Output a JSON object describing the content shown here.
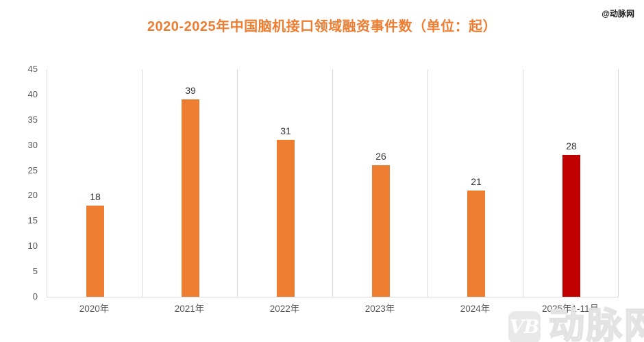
{
  "title": "2020-2025年中国脑机接口领域融资事件数（单位：起）",
  "watermarks": {
    "top_right": "@动脉网",
    "bottom_logo": "VB",
    "bottom_text": "动脉网"
  },
  "colors": {
    "title": "#ED7D31",
    "bar": "#ED7D31",
    "bar_highlight": "#C00000",
    "axis_line": "#D9D9D9",
    "gridline": "#D9D9D9",
    "tick_label": "#595959",
    "data_label": "#333333",
    "watermark_gray": "#E3E3E3"
  },
  "chart_data": {
    "type": "bar",
    "title": "2020-2025年中国脑机接口领域融资事件数（单位：起）",
    "categories": [
      "2020年",
      "2021年",
      "2022年",
      "2023年",
      "2024年",
      "2025年1-11月"
    ],
    "values": [
      18,
      39,
      31,
      26,
      21,
      28
    ],
    "bar_colors": [
      "#ED7D31",
      "#ED7D31",
      "#ED7D31",
      "#ED7D31",
      "#ED7D31",
      "#C00000"
    ],
    "data_labels": [
      "18",
      "39",
      "31",
      "26",
      "21",
      "28"
    ],
    "xlabel": "",
    "ylabel": "",
    "ylim": [
      0,
      45
    ],
    "yticks": [
      0,
      5,
      10,
      15,
      20,
      25,
      30,
      35,
      40,
      45
    ],
    "grid": "vertical-category-boundaries",
    "legend": "none"
  }
}
